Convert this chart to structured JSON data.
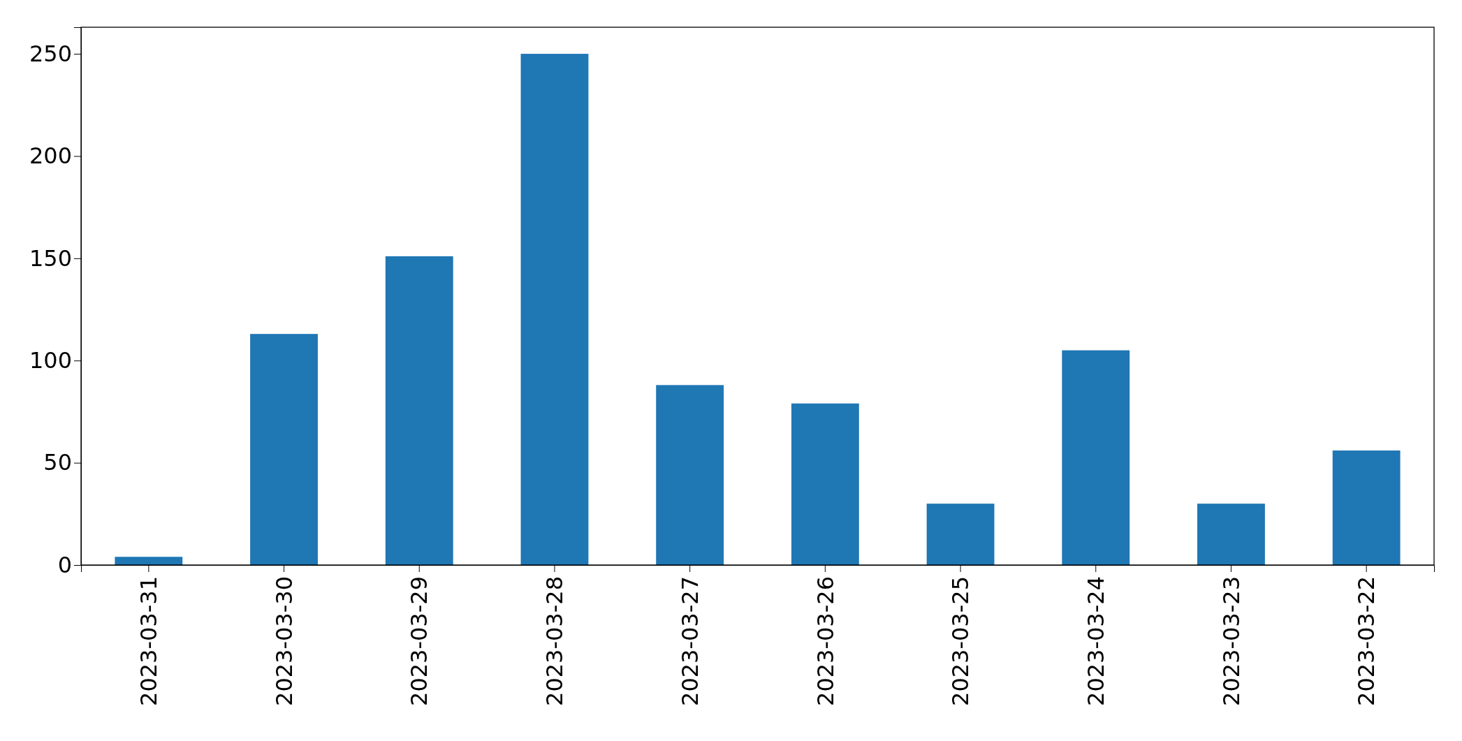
{
  "chart_data": {
    "type": "bar",
    "categories": [
      "2023-03-31",
      "2023-03-30",
      "2023-03-29",
      "2023-03-28",
      "2023-03-27",
      "2023-03-26",
      "2023-03-25",
      "2023-03-24",
      "2023-03-23",
      "2023-03-22"
    ],
    "values": [
      4,
      113,
      151,
      250,
      88,
      79,
      30,
      105,
      30,
      56
    ],
    "color": "#1f77b4",
    "ylim": [
      0,
      263
    ],
    "yticks": [
      0,
      50,
      100,
      150,
      200,
      250
    ],
    "grid": false
  }
}
